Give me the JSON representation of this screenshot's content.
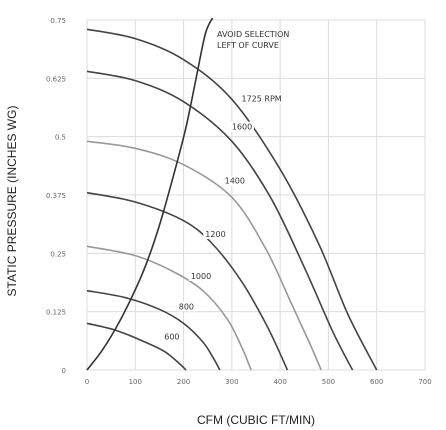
{
  "chart_data": {
    "type": "line",
    "title": "",
    "xlabel": "CFM (CUBIC FT/MIN)",
    "ylabel": "STATIC PRESSURE (INCHES WG)",
    "xlim": [
      0,
      700
    ],
    "ylim": [
      0,
      0.75
    ],
    "x_ticks": [
      0,
      100,
      200,
      300,
      400,
      500,
      600,
      700
    ],
    "y_ticks": [
      0,
      0.125,
      0.25,
      0.375,
      0.5,
      0.625,
      0.75
    ],
    "x_tick_labels": [
      "0",
      "100",
      "200",
      "300",
      "400",
      "500",
      "600",
      "700"
    ],
    "y_tick_labels": [
      "0",
      "0.125",
      "0.25",
      "0.375",
      "0.5",
      "0.625",
      "0.75"
    ],
    "grid": true,
    "annotation": {
      "text": "AVOID SELECTION\nLEFT OF CURVE",
      "lines": [
        "AVOID SELECTION",
        "LEFT OF CURVE"
      ]
    },
    "selection_curve": {
      "x": [
        0,
        30,
        60,
        90,
        120,
        150,
        180,
        205,
        225,
        245,
        260
      ],
      "y": [
        0,
        0.04,
        0.09,
        0.15,
        0.22,
        0.31,
        0.42,
        0.52,
        0.62,
        0.72,
        0.8
      ]
    },
    "series": [
      {
        "label": "1725 RPM",
        "label_at": [
          320,
          0.575
        ],
        "color": "#444444",
        "x": [
          0,
          100,
          200,
          300,
          400,
          480,
          540,
          600
        ],
        "y": [
          0.73,
          0.71,
          0.665,
          0.58,
          0.43,
          0.27,
          0.12,
          0
        ]
      },
      {
        "label": "1600",
        "label_at": [
          300,
          0.515
        ],
        "color": "#444444",
        "x": [
          0,
          100,
          200,
          300,
          380,
          450,
          510,
          550
        ],
        "y": [
          0.64,
          0.62,
          0.575,
          0.49,
          0.37,
          0.22,
          0.08,
          0
        ]
      },
      {
        "label": "1400",
        "label_at": [
          285,
          0.4
        ],
        "color": "#999999",
        "x": [
          0,
          100,
          200,
          300,
          370,
          420,
          460,
          485
        ],
        "y": [
          0.49,
          0.475,
          0.44,
          0.37,
          0.26,
          0.15,
          0.06,
          0
        ]
      },
      {
        "label": "1200",
        "label_at": [
          245,
          0.285
        ],
        "color": "#444444",
        "x": [
          0,
          100,
          200,
          260,
          320,
          370,
          400,
          415
        ],
        "y": [
          0.38,
          0.36,
          0.32,
          0.27,
          0.19,
          0.1,
          0.035,
          0
        ]
      },
      {
        "label": "1000",
        "label_at": [
          215,
          0.195
        ],
        "color": "#999999",
        "x": [
          0,
          100,
          180,
          240,
          290,
          320,
          340
        ],
        "y": [
          0.265,
          0.245,
          0.21,
          0.17,
          0.11,
          0.05,
          0
        ]
      },
      {
        "label": "800",
        "label_at": [
          190,
          0.13
        ],
        "color": "#444444",
        "x": [
          0,
          80,
          150,
          200,
          240,
          262,
          275
        ],
        "y": [
          0.17,
          0.155,
          0.13,
          0.1,
          0.06,
          0.025,
          0
        ]
      },
      {
        "label": "600",
        "label_at": [
          160,
          0.065
        ],
        "color": "#444444",
        "x": [
          0,
          60,
          120,
          160,
          190,
          205
        ],
        "y": [
          0.1,
          0.085,
          0.06,
          0.04,
          0.015,
          0
        ]
      }
    ]
  }
}
